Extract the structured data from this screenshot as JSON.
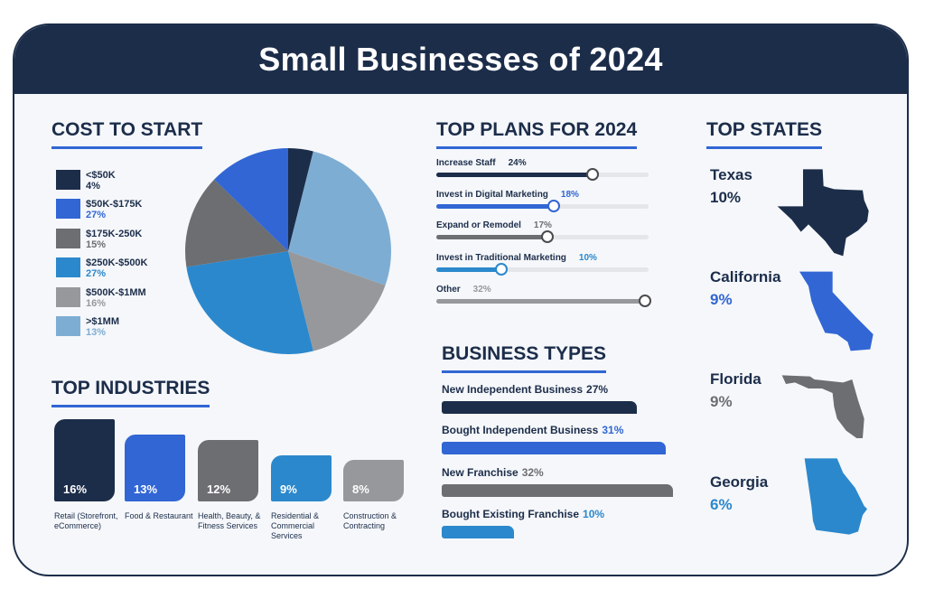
{
  "title": "Small Businesses of 2024",
  "colors": {
    "navy": "#1c2d4a",
    "royal": "#3166d4",
    "darkgray": "#6d6e71",
    "midblue": "#2b88cc",
    "lightgray": "#97989b",
    "lightblue": "#7eadd3",
    "track": "#e4e6ea"
  },
  "cost": {
    "heading": "COST TO START",
    "legend": [
      {
        "label": "<$50K",
        "value": "4%",
        "color": "#1c2d4a"
      },
      {
        "label": "$50K-$175K",
        "value": "27%",
        "color": "#3166d4"
      },
      {
        "label": "$175K-250K",
        "value": "15%",
        "color": "#6d6e71"
      },
      {
        "label": "$250K-$500K",
        "value": "27%",
        "color": "#2b88cc"
      },
      {
        "label": "$500K-$1MM",
        "value": "16%",
        "color": "#97989b"
      },
      {
        "label": ">$1MM",
        "value": "13%",
        "color": "#7eadd3"
      }
    ]
  },
  "chart_data": [
    {
      "type": "pie",
      "title": "COST TO START",
      "slices_clockwise_from_top": [
        {
          "label": "<$50K",
          "value": 4,
          "color": "#1c2d4a"
        },
        {
          "value": 27,
          "color": "#7eadd3"
        },
        {
          "value": 16,
          "color": "#97989b"
        },
        {
          "value": 27,
          "color": "#2b88cc"
        },
        {
          "value": 15,
          "color": "#6d6e71"
        },
        {
          "value": 13,
          "color": "#3166d4"
        }
      ]
    },
    {
      "type": "bar",
      "title": "TOP INDUSTRIES",
      "categories": [
        "Retail (Storefront, eCommerce)",
        "Food & Restaurant",
        "Health, Beauty, & Fitness Services",
        "Residential & Commercial Services",
        "Construction & Contracting"
      ],
      "values": [
        16,
        13,
        12,
        9,
        8
      ],
      "labels": [
        "16%",
        "13%",
        "12%",
        "9%",
        "8%"
      ],
      "colors": [
        "#1c2d4a",
        "#3166d4",
        "#6d6e71",
        "#2b88cc",
        "#97989b"
      ]
    },
    {
      "type": "bar",
      "orientation": "slider",
      "title": "TOP PLANS FOR 2024",
      "categories": [
        "Increase Staff",
        "Invest in Digital Marketing",
        "Expand or Remodel",
        "Invest in Traditional Marketing",
        "Other"
      ],
      "values": [
        24,
        18,
        17,
        10,
        32
      ],
      "labels": [
        "24%",
        "18%",
        "17%",
        "10%",
        "32%"
      ],
      "colors": [
        "#1c2d4a",
        "#3166d4",
        "#6d6e71",
        "#2b88cc",
        "#97989b"
      ]
    },
    {
      "type": "bar",
      "orientation": "horizontal",
      "title": "BUSINESS TYPES",
      "categories": [
        "New Independent Business",
        "Bought Independent Business",
        "New Franchise",
        "Bought Existing Franchise"
      ],
      "values": [
        27,
        31,
        32,
        10
      ],
      "labels": [
        "27%",
        "31%",
        "32%",
        "10%"
      ],
      "colors": [
        "#1c2d4a",
        "#3166d4",
        "#6d6e71",
        "#2b88cc"
      ]
    }
  ],
  "industries": {
    "heading": "TOP INDUSTRIES"
  },
  "plans": {
    "heading": "TOP PLANS FOR 2024"
  },
  "types": {
    "heading": "BUSINESS TYPES"
  },
  "states": {
    "heading": "TOP STATES",
    "items": [
      {
        "name": "Texas",
        "value": "10%",
        "color": "#1c2d4a",
        "icon": "texas-map-icon"
      },
      {
        "name": "California",
        "value": "9%",
        "color": "#3166d4",
        "icon": "california-map-icon"
      },
      {
        "name": "Florida",
        "value": "9%",
        "color": "#6d6e71",
        "icon": "florida-map-icon"
      },
      {
        "name": "Georgia",
        "value": "6%",
        "color": "#2b88cc",
        "icon": "georgia-map-icon"
      }
    ]
  }
}
